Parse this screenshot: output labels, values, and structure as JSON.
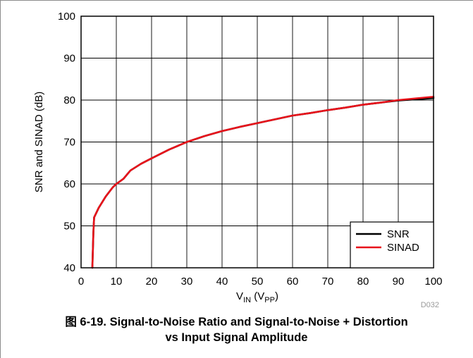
{
  "chart_data": {
    "type": "line",
    "title": "",
    "xlabel": {
      "main": "V",
      "main_sub": "IN",
      "paren_main": "V",
      "paren_sub": "PP"
    },
    "ylabel": "SNR and SINAD (dB)",
    "xlim": [
      0,
      100
    ],
    "ylim": [
      40,
      100
    ],
    "x_ticks": [
      "0",
      "10",
      "20",
      "30",
      "40",
      "50",
      "60",
      "70",
      "80",
      "90",
      "100"
    ],
    "y_ticks": [
      "40",
      "50",
      "60",
      "70",
      "80",
      "90",
      "100"
    ],
    "grid": true,
    "legend_position": "bottom-right",
    "figure_code": "D032",
    "series": [
      {
        "name": "SNR",
        "color": "#000000",
        "x": [
          3.2,
          3.5,
          3.7,
          5,
          7,
          9,
          10,
          12,
          14,
          17,
          20,
          25,
          30,
          35,
          40,
          45,
          50,
          55,
          60,
          65,
          70,
          75,
          80,
          85,
          90,
          95,
          100
        ],
        "y": [
          40,
          48.5,
          52,
          54.3,
          57,
          59.2,
          60,
          61.2,
          63.2,
          64.8,
          66.1,
          68.2,
          70,
          71.4,
          72.6,
          73.6,
          74.5,
          75.4,
          76.3,
          76.9,
          77.6,
          78.2,
          78.9,
          79.4,
          79.9,
          80.2,
          80.5
        ]
      },
      {
        "name": "SINAD",
        "color": "#e8121b",
        "x": [
          3.2,
          3.5,
          3.7,
          5,
          7,
          9,
          10,
          12,
          14,
          17,
          20,
          25,
          30,
          35,
          40,
          45,
          50,
          55,
          60,
          65,
          70,
          75,
          80,
          85,
          90,
          95,
          100
        ],
        "y": [
          40,
          48.5,
          52,
          54.3,
          57,
          59.2,
          60,
          61.2,
          63.2,
          64.8,
          66.1,
          68.2,
          70,
          71.4,
          72.6,
          73.6,
          74.5,
          75.4,
          76.3,
          76.9,
          77.6,
          78.2,
          78.9,
          79.4,
          80,
          80.4,
          80.8
        ]
      }
    ]
  },
  "caption": {
    "line1": "图 6-19. Signal-to-Noise Ratio and Signal-to-Noise + Distortion",
    "line2": "vs Input Signal Amplitude"
  }
}
